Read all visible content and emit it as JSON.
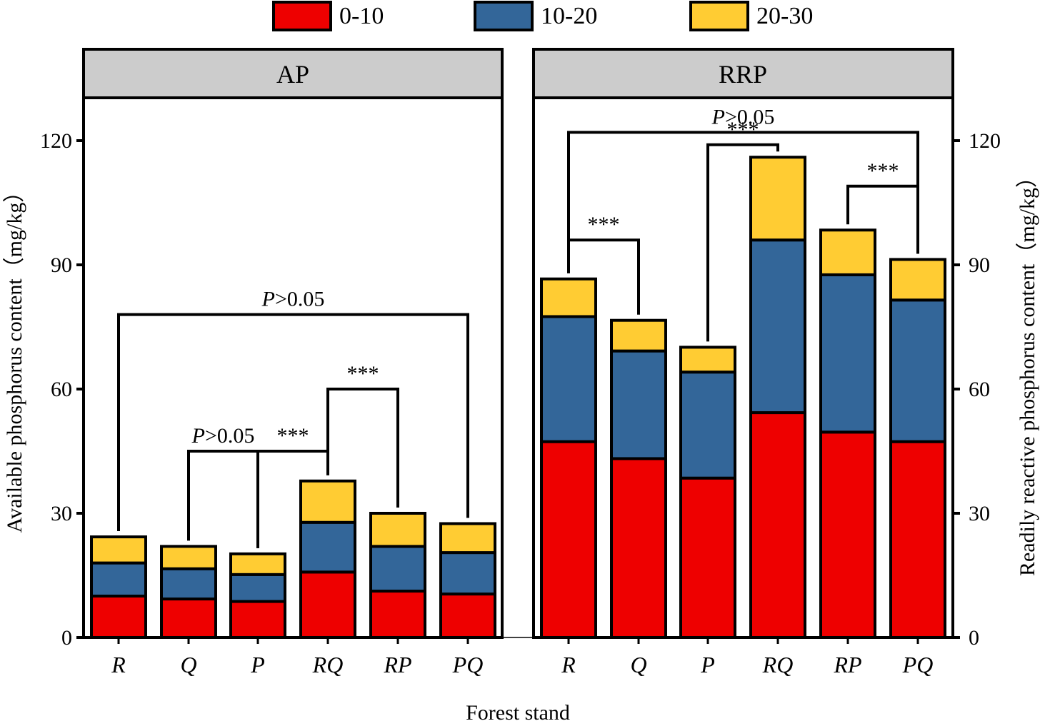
{
  "legend": {
    "items": [
      {
        "label": "0-10",
        "color": "#ee0000"
      },
      {
        "label": "10-20",
        "color": "#336699"
      },
      {
        "label": "20-30",
        "color": "#ffcc33"
      }
    ]
  },
  "x_axis_title": "Forest stand",
  "chart_data": [
    {
      "type": "bar",
      "stacked": true,
      "panel": "AP",
      "categories": [
        "R",
        "Q",
        "P",
        "RQ",
        "RP",
        "PQ"
      ],
      "series": [
        {
          "name": "0-10",
          "values": [
            10,
            9.3,
            8.7,
            15.8,
            11.2,
            10.5
          ]
        },
        {
          "name": "10-20",
          "values": [
            8,
            7.3,
            6.5,
            12,
            10.8,
            10
          ]
        },
        {
          "name": "20-30",
          "values": [
            6.3,
            5.4,
            5,
            10,
            8,
            7
          ]
        }
      ],
      "ylabel": "Available phosphorus content（mg/kg）",
      "ylim": [
        0,
        130
      ],
      "yticks": [
        0,
        30,
        60,
        90,
        120
      ],
      "significance": [
        {
          "from": "R",
          "to": "PQ",
          "level": 78,
          "label": "P>0.05"
        },
        {
          "from": "Q",
          "to": "P",
          "level": 45,
          "label": "P>0.05"
        },
        {
          "from": "P",
          "to": "RQ",
          "level": 45,
          "label": "***"
        },
        {
          "from": "RQ",
          "to": "RP",
          "level": 60,
          "label": "***"
        }
      ]
    },
    {
      "type": "bar",
      "stacked": true,
      "panel": "RRP",
      "categories": [
        "R",
        "Q",
        "P",
        "RQ",
        "RP",
        "PQ"
      ],
      "series": [
        {
          "name": "0-10",
          "values": [
            47.3,
            43.2,
            38.5,
            54.3,
            49.6,
            47.3
          ]
        },
        {
          "name": "10-20",
          "values": [
            30.2,
            26,
            25.6,
            41.7,
            38,
            34.2
          ]
        },
        {
          "name": "20-30",
          "values": [
            9.1,
            7.4,
            6,
            20,
            10.8,
            9.8
          ]
        }
      ],
      "ylabel": "Readily reactive phosphorus content（mg/kg）",
      "ylim": [
        0,
        130
      ],
      "yticks": [
        0,
        30,
        60,
        90,
        120
      ],
      "significance": [
        {
          "from": "R",
          "to": "PQ",
          "level": 122,
          "label": "P>0.05"
        },
        {
          "from": "R",
          "to": "Q",
          "level": 96,
          "label": "***"
        },
        {
          "from": "P",
          "to": "RQ",
          "level": 119,
          "label": "***"
        },
        {
          "from": "RP",
          "to": "PQ",
          "level": 109,
          "label": "***"
        }
      ]
    }
  ]
}
